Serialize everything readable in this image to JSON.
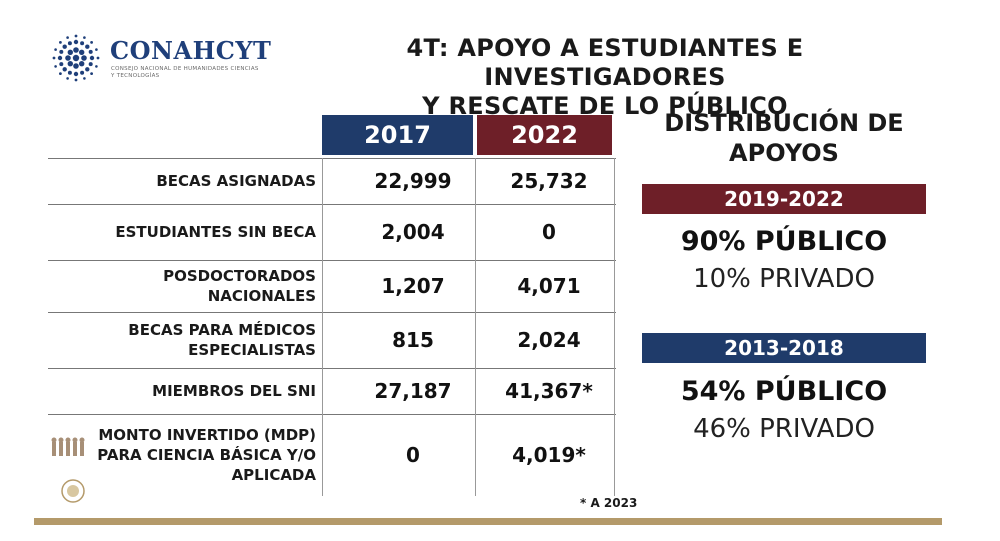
{
  "logo": {
    "name": "CONAHCYT",
    "subtitle": "CONSEJO NACIONAL DE HUMANIDADES CIENCIAS Y TECNOLOGÍAS",
    "color": "#1f3f7a"
  },
  "title": {
    "line1": "4T: APOYO A ESTUDIANTES E INVESTIGADORES",
    "line2": "Y RESCATE DE LO PÚBLICO"
  },
  "table": {
    "headers": [
      "2017",
      "2022"
    ],
    "header_colors": [
      "#1f3b6a",
      "#6e1f28"
    ],
    "rows": [
      {
        "label_lines": [
          "BECAS ASIGNADAS"
        ],
        "v2017": "22,999",
        "v2022": "25,732"
      },
      {
        "label_lines": [
          "ESTUDIANTES SIN BECA"
        ],
        "v2017": "2,004",
        "v2022": "0"
      },
      {
        "label_lines": [
          "POSDOCTORADOS",
          "NACIONALES"
        ],
        "v2017": "1,207",
        "v2022": "4,071"
      },
      {
        "label_lines": [
          "BECAS PARA MÉDICOS",
          "ESPECIALISTAS"
        ],
        "v2017": "815",
        "v2022": "2,024"
      },
      {
        "label_lines": [
          "MIEMBROS DEL SNI"
        ],
        "v2017": "27,187",
        "v2022": "41,367*"
      },
      {
        "label_lines": [
          "MONTO INVERTIDO (MDP)",
          "PARA CIENCIA BÁSICA Y/O",
          "APLICADA"
        ],
        "v2017": "0",
        "v2022": "4,019*"
      }
    ],
    "footnote": "* A 2023"
  },
  "distribution": {
    "title_line1": "DISTRIBUCIÓN DE",
    "title_line2": "APOYOS",
    "periods": [
      {
        "label": "2019-2022",
        "public": "90% PÚBLICO",
        "private": "10% PRIVADO",
        "color": "#6e1f28"
      },
      {
        "label": "2013-2018",
        "public": "54% PÚBLICO",
        "private": "46% PRIVADO",
        "color": "#1f3b6a"
      }
    ]
  },
  "colors": {
    "navy": "#1f3b6a",
    "maroon": "#6e1f28",
    "gold": "#b49a6a"
  }
}
